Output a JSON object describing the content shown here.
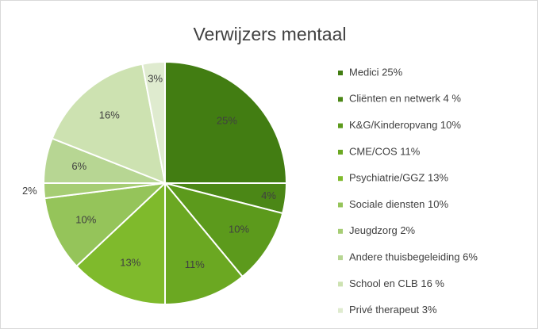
{
  "chart_data": {
    "type": "pie",
    "title": "Verwijzers mentaal",
    "categories": [
      "Medici 25%",
      "Cliënten en netwerk 4 %",
      "K&G/Kinderopvang 10%",
      "CME/COS 11%",
      "Psychiatrie/GGZ 13%",
      "Sociale diensten 10%",
      "Jeugdzorg  2%",
      "Andere thuisbegeleiding 6%",
      "School en CLB 16 %",
      "Privé therapeut 3%"
    ],
    "values": [
      25,
      4,
      10,
      11,
      13,
      10,
      2,
      6,
      16,
      3
    ],
    "value_labels": [
      "25%",
      "4%",
      "10%",
      "11%",
      "13%",
      "10%",
      "2%",
      "6%",
      "16%",
      "3%"
    ],
    "colors": [
      "#427d12",
      "#4b8716",
      "#5c9a1c",
      "#6ba822",
      "#7fba2c",
      "#95c45a",
      "#a6cd74",
      "#b7d693",
      "#cde2b1",
      "#dfebcf"
    ],
    "legend": "right"
  }
}
